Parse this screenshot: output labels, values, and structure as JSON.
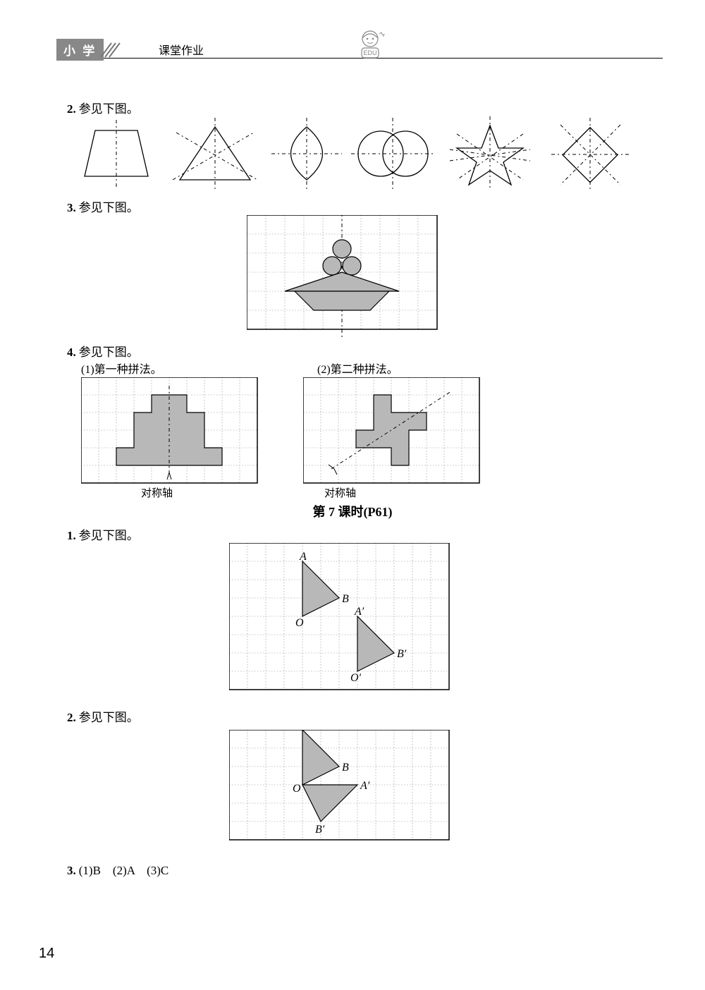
{
  "header": {
    "tab": "小 学",
    "title": "课堂作业"
  },
  "q2": {
    "num": "2.",
    "text": "参见下图。"
  },
  "q3": {
    "num": "3.",
    "text": "参见下图。"
  },
  "q4": {
    "num": "4.",
    "text": "参见下图。",
    "sub1": "(1)第一种拼法。",
    "sub2": "(2)第二种拼法。",
    "axis1": "对称轴",
    "axis2": "对称轴"
  },
  "section": "第 7 课时(P61)",
  "s7q1": {
    "num": "1.",
    "text": "参见下图。"
  },
  "s7q2": {
    "num": "2.",
    "text": "参见下图。"
  },
  "s7q3": {
    "num": "3.",
    "text": "(1)B　(2)A　(3)C"
  },
  "labels": {
    "A": "A",
    "B": "B",
    "O": "O",
    "A1": "A′",
    "B1": "B′",
    "O1": "O′"
  },
  "pagenum": "14",
  "grid3": {
    "cols": 10,
    "rows": 6,
    "cell": 27
  },
  "grid4a": {
    "cols": 10,
    "rows": 6,
    "cell": 25
  },
  "grid4b": {
    "cols": 10,
    "rows": 6,
    "cell": 25
  },
  "grid7a": {
    "cols": 12,
    "rows": 8,
    "cell": 26
  },
  "grid7b": {
    "cols": 12,
    "rows": 6,
    "cell": 26
  },
  "colors": {
    "fill": "#b8b8b8",
    "grid": "#888888",
    "line": "#000000"
  }
}
